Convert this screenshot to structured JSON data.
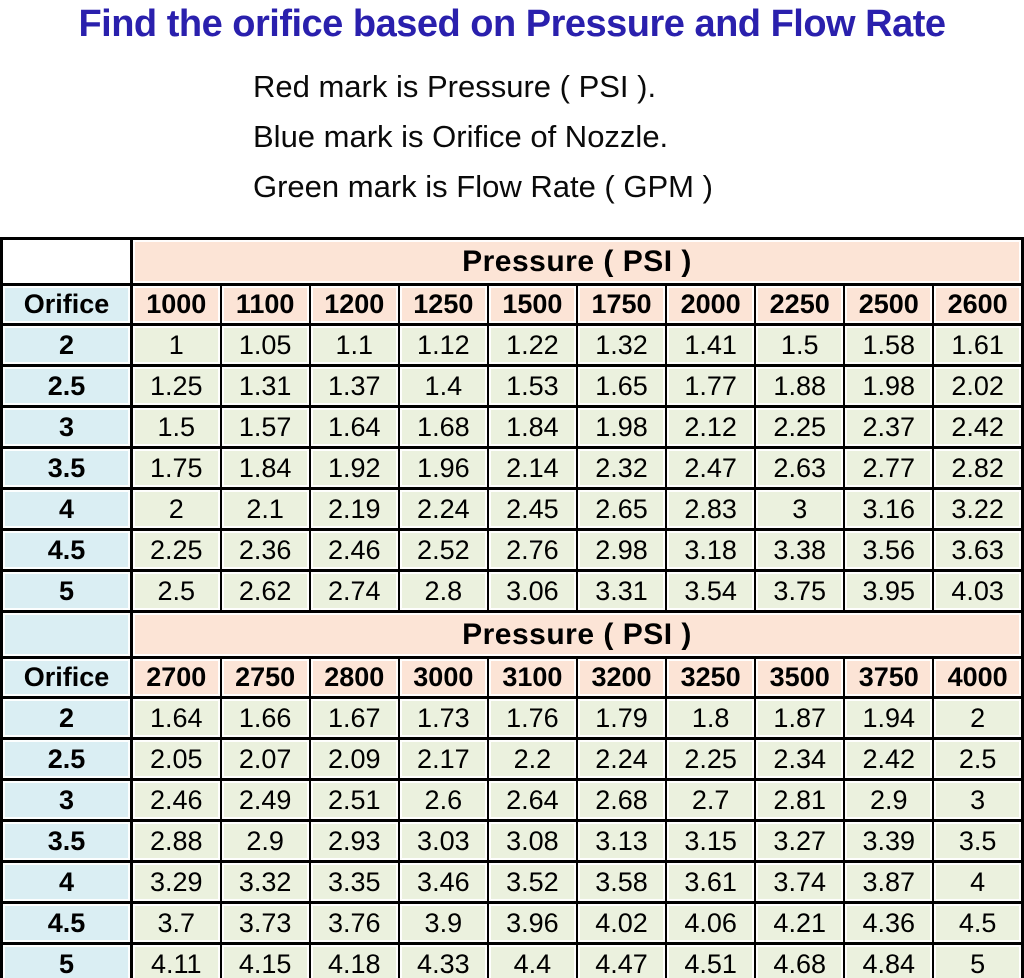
{
  "page": {
    "title": "Find the orifice based on Pressure and Flow Rate",
    "legend_lines": [
      "Red mark is Pressure ( PSI ).",
      "Blue mark is Orifice of Nozzle.",
      "Green mark is Flow Rate ( GPM )"
    ]
  },
  "colors": {
    "title_blue": "#2a20ad",
    "header_peach": "#fce4d6",
    "orifice_blue": "#daeef3",
    "flow_green": "#ebf1de",
    "grid_black": "#000000"
  },
  "chart_data": [
    {
      "type": "table",
      "title": "Pressure ( PSI )",
      "row_header_label": "Orifice",
      "corner_style": "white",
      "columns": [
        "1000",
        "1100",
        "1200",
        "1250",
        "1500",
        "1750",
        "2000",
        "2250",
        "2500",
        "2600"
      ],
      "rows": [
        {
          "orifice": "2",
          "flow_gpm": [
            "1",
            "1.05",
            "1.1",
            "1.12",
            "1.22",
            "1.32",
            "1.41",
            "1.5",
            "1.58",
            "1.61"
          ]
        },
        {
          "orifice": "2.5",
          "flow_gpm": [
            "1.25",
            "1.31",
            "1.37",
            "1.4",
            "1.53",
            "1.65",
            "1.77",
            "1.88",
            "1.98",
            "2.02"
          ]
        },
        {
          "orifice": "3",
          "flow_gpm": [
            "1.5",
            "1.57",
            "1.64",
            "1.68",
            "1.84",
            "1.98",
            "2.12",
            "2.25",
            "2.37",
            "2.42"
          ]
        },
        {
          "orifice": "3.5",
          "flow_gpm": [
            "1.75",
            "1.84",
            "1.92",
            "1.96",
            "2.14",
            "2.32",
            "2.47",
            "2.63",
            "2.77",
            "2.82"
          ]
        },
        {
          "orifice": "4",
          "flow_gpm": [
            "2",
            "2.1",
            "2.19",
            "2.24",
            "2.45",
            "2.65",
            "2.83",
            "3",
            "3.16",
            "3.22"
          ]
        },
        {
          "orifice": "4.5",
          "flow_gpm": [
            "2.25",
            "2.36",
            "2.46",
            "2.52",
            "2.76",
            "2.98",
            "3.18",
            "3.38",
            "3.56",
            "3.63"
          ]
        },
        {
          "orifice": "5",
          "flow_gpm": [
            "2.5",
            "2.62",
            "2.74",
            "2.8",
            "3.06",
            "3.31",
            "3.54",
            "3.75",
            "3.95",
            "4.03"
          ]
        }
      ]
    },
    {
      "type": "table",
      "title": "Pressure ( PSI )",
      "row_header_label": "Orifice",
      "corner_style": "blue",
      "columns": [
        "2700",
        "2750",
        "2800",
        "3000",
        "3100",
        "3200",
        "3250",
        "3500",
        "3750",
        "4000"
      ],
      "rows": [
        {
          "orifice": "2",
          "flow_gpm": [
            "1.64",
            "1.66",
            "1.67",
            "1.73",
            "1.76",
            "1.79",
            "1.8",
            "1.87",
            "1.94",
            "2"
          ]
        },
        {
          "orifice": "2.5",
          "flow_gpm": [
            "2.05",
            "2.07",
            "2.09",
            "2.17",
            "2.2",
            "2.24",
            "2.25",
            "2.34",
            "2.42",
            "2.5"
          ]
        },
        {
          "orifice": "3",
          "flow_gpm": [
            "2.46",
            "2.49",
            "2.51",
            "2.6",
            "2.64",
            "2.68",
            "2.7",
            "2.81",
            "2.9",
            "3"
          ]
        },
        {
          "orifice": "3.5",
          "flow_gpm": [
            "2.88",
            "2.9",
            "2.93",
            "3.03",
            "3.08",
            "3.13",
            "3.15",
            "3.27",
            "3.39",
            "3.5"
          ]
        },
        {
          "orifice": "4",
          "flow_gpm": [
            "3.29",
            "3.32",
            "3.35",
            "3.46",
            "3.52",
            "3.58",
            "3.61",
            "3.74",
            "3.87",
            "4"
          ]
        },
        {
          "orifice": "4.5",
          "flow_gpm": [
            "3.7",
            "3.73",
            "3.76",
            "3.9",
            "3.96",
            "4.02",
            "4.06",
            "4.21",
            "4.36",
            "4.5"
          ]
        },
        {
          "orifice": "5",
          "flow_gpm": [
            "4.11",
            "4.15",
            "4.18",
            "4.33",
            "4.4",
            "4.47",
            "4.51",
            "4.68",
            "4.84",
            "5"
          ]
        }
      ]
    }
  ]
}
